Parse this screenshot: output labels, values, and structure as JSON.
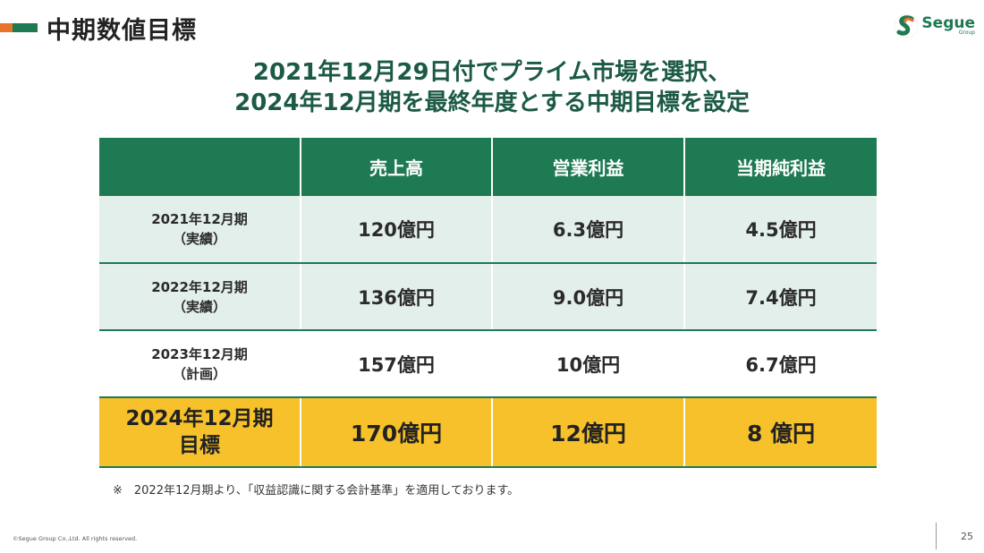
{
  "header": {
    "title": "中期数値目標",
    "logo": {
      "name": "Segue",
      "sub": "Group"
    }
  },
  "headline": {
    "line1": "2021年12月29日付でプライム市場を選択、",
    "line2": "2024年12月期を最終年度とする中期目標を設定"
  },
  "table": {
    "columns": [
      "",
      "売上高",
      "営業利益",
      "当期純利益"
    ],
    "rows": [
      {
        "period": "2021年12月期",
        "status": "（実績）",
        "sales": "120億円",
        "operating_profit": "6.3億円",
        "net_profit": "4.5億円"
      },
      {
        "period": "2022年12月期",
        "status": "（実績）",
        "sales": "136億円",
        "operating_profit": "9.0億円",
        "net_profit": "7.4億円"
      },
      {
        "period": "2023年12月期",
        "status": "（計画）",
        "sales": "157億円",
        "operating_profit": "10億円",
        "net_profit": "6.7億円"
      },
      {
        "period": "2024年12月期",
        "status": "目標",
        "sales": "170億円",
        "operating_profit": "12億円",
        "net_profit": "8 億円"
      }
    ]
  },
  "footnote": "※　2022年12月期より、「収益認識に関する会計基準」を適用しております。",
  "footer": {
    "copyright": "©Segue Group Co.,Ltd. All rights reserved.",
    "page_number": "25"
  },
  "colors": {
    "primary_green": "#1e7a52",
    "headline_green": "#1c5a44",
    "row_shade": "#e3efea",
    "highlight": "#f6c12a",
    "accent_orange": "#e8722a"
  }
}
